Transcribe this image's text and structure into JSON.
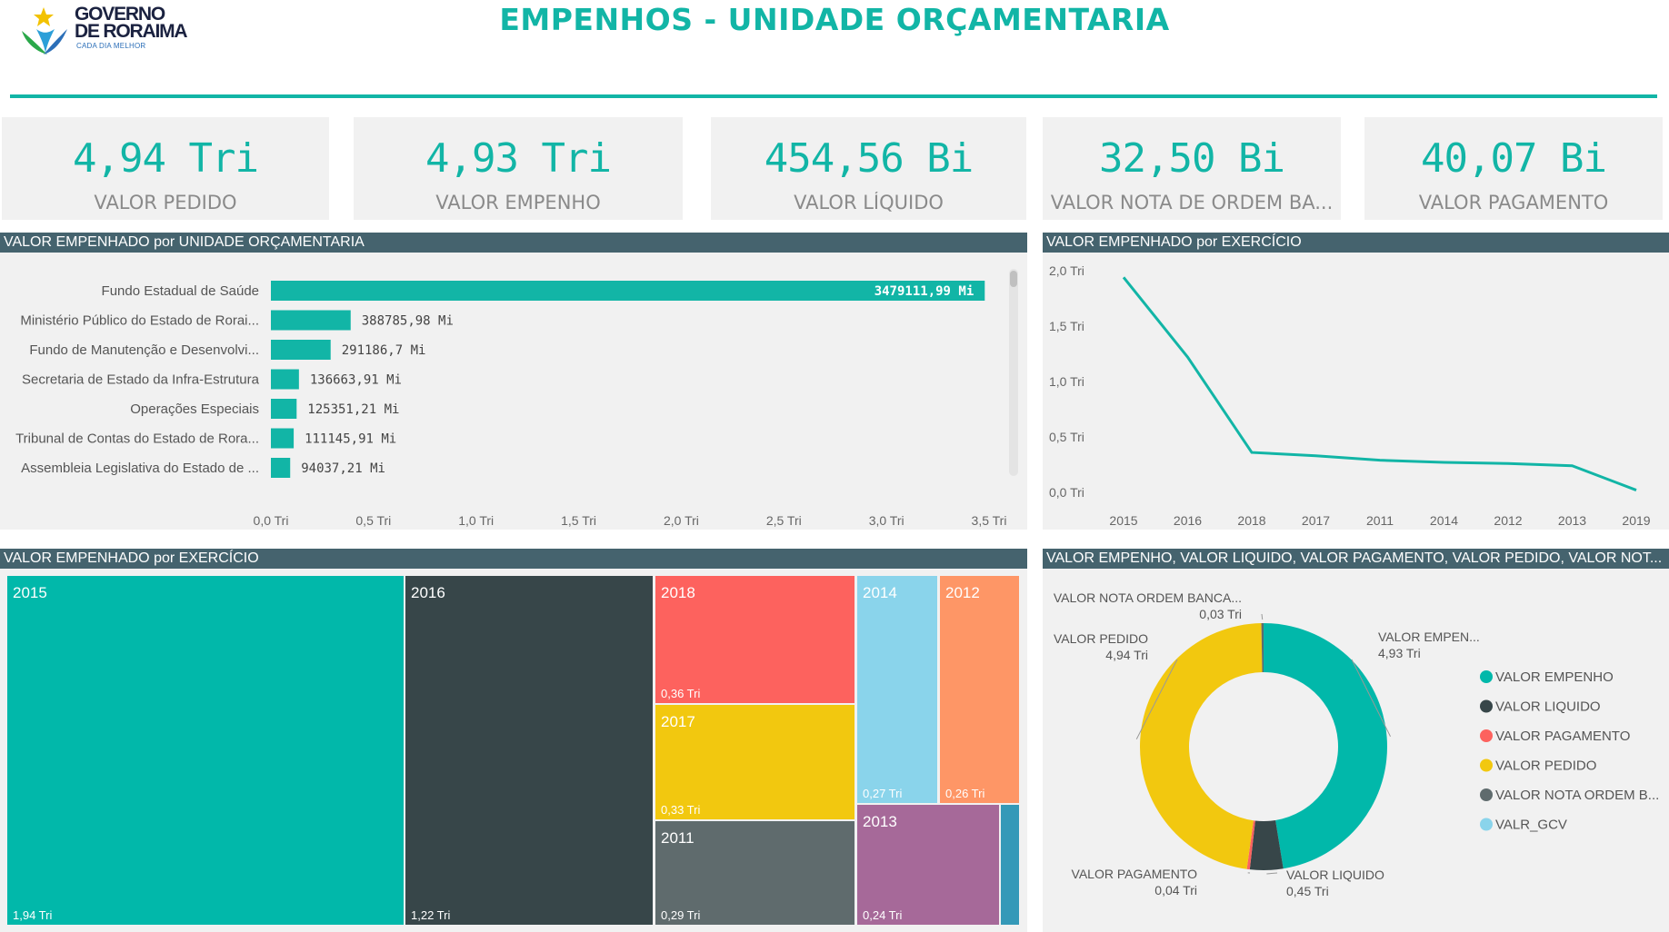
{
  "header": {
    "logo_line1": "GOVERNO",
    "logo_line2": "DE RORAIMA",
    "logo_tagline": "CADA DIA MELHOR",
    "title": "EMPENHOS - UNIDADE ORÇAMENTARIA",
    "accent": "#12b5a6"
  },
  "kpis": [
    {
      "value": "4,94 Tri",
      "label": "VALOR PEDIDO"
    },
    {
      "value": "4,93 Tri",
      "label": "VALOR EMPENHO"
    },
    {
      "value": "454,56 Bi",
      "label": "VALOR LÍQUIDO"
    },
    {
      "value": "32,50 Bi",
      "label": "VALOR NOTA DE ORDEM BA..."
    },
    {
      "value": "40,07 Bi",
      "label": "VALOR PAGAMENTO"
    }
  ],
  "panels": {
    "bar": {
      "title": "VALOR EMPENHADO por UNIDADE ORÇAMENTARIA"
    },
    "line": {
      "title": "VALOR EMPENHADO por EXERCÍCIO"
    },
    "treemap": {
      "title": "VALOR EMPENHADO por EXERCÍCIO"
    },
    "donut": {
      "title": "VALOR EMPENHO, VALOR LIQUIDO, VALOR PAGAMENTO, VALOR PEDIDO, VALOR NOT..."
    }
  },
  "chart_data": [
    {
      "type": "bar",
      "orientation": "horizontal",
      "title": "VALOR EMPENHADO por UNIDADE ORÇAMENTARIA",
      "categories": [
        "Fundo Estadual de Saúde",
        "Ministério Público do Estado de Rorai...",
        "Fundo de Manutenção e Desenvolvi...",
        "Secretaria de Estado da Infra-Estrutura",
        "Operações Especiais",
        "Tribunal de Contas do Estado de Rora...",
        "Assembleia Legislativa do Estado de ..."
      ],
      "values": [
        3.47911199,
        0.38878598,
        0.2911867,
        0.13666391,
        0.12535121,
        0.11114591,
        0.09403721
      ],
      "data_labels": [
        "3479111,99 Mi",
        "388785,98 Mi",
        "291186,7 Mi",
        "136663,91 Mi",
        "125351,21 Mi",
        "111145,91 Mi",
        "94037,21 Mi"
      ],
      "xlim": [
        0,
        3.5
      ],
      "xticks": [
        "0,0 Tri",
        "0,5 Tri",
        "1,0 Tri",
        "1,5 Tri",
        "2,0 Tri",
        "2,5 Tri",
        "3,0 Tri",
        "3,5 Tri"
      ],
      "color": "#12b5a6"
    },
    {
      "type": "line",
      "title": "VALOR EMPENHADO por EXERCÍCIO",
      "categories": [
        "2015",
        "2016",
        "2018",
        "2017",
        "2011",
        "2014",
        "2012",
        "2013",
        "2019"
      ],
      "values": [
        1.94,
        1.22,
        0.36,
        0.33,
        0.29,
        0.27,
        0.26,
        0.24,
        0.02
      ],
      "ylim": [
        0,
        2.0
      ],
      "yticks": [
        "0,0 Tri",
        "0,5 Tri",
        "1,0 Tri",
        "1,5 Tri",
        "2,0 Tri"
      ],
      "color": "#12b5a6"
    },
    {
      "type": "treemap",
      "title": "VALOR EMPENHADO por EXERCÍCIO",
      "items": [
        {
          "name": "2015",
          "value": 1.94,
          "label": "1,94 Tri",
          "color": "#01b8aa"
        },
        {
          "name": "2016",
          "value": 1.22,
          "label": "1,22 Tri",
          "color": "#374649"
        },
        {
          "name": "2018",
          "value": 0.36,
          "label": "0,36 Tri",
          "color": "#fd625e"
        },
        {
          "name": "2017",
          "value": 0.33,
          "label": "0,33 Tri",
          "color": "#f2c80f"
        },
        {
          "name": "2011",
          "value": 0.29,
          "label": "0,29 Tri",
          "color": "#5f6b6d"
        },
        {
          "name": "2014",
          "value": 0.27,
          "label": "0,27 Tri",
          "color": "#8ad4eb"
        },
        {
          "name": "2012",
          "value": 0.26,
          "label": "0,26 Tri",
          "color": "#fe9666"
        },
        {
          "name": "2013",
          "value": 0.24,
          "label": "0,24 Tri",
          "color": "#a66999"
        },
        {
          "name": "",
          "value": 0.02,
          "label": "",
          "color": "#3599b8"
        }
      ]
    },
    {
      "type": "pie",
      "donut": true,
      "title": "VALOR EMPENHO, VALOR LIQUIDO, VALOR PAGAMENTO, VALOR PEDIDO, VALOR NOT...",
      "slices": [
        {
          "name": "VALOR EMPENHO",
          "callout": "VALOR EMPEN...",
          "value": 4.93,
          "label": "4,93 Tri",
          "color": "#01b8aa"
        },
        {
          "name": "VALOR LIQUIDO",
          "callout": "VALOR LIQUIDO",
          "value": 0.45,
          "label": "0,45 Tri",
          "color": "#374649"
        },
        {
          "name": "VALOR PAGAMENTO",
          "callout": "VALOR PAGAMENTO",
          "value": 0.04,
          "label": "0,04 Tri",
          "color": "#fd625e"
        },
        {
          "name": "VALOR PEDIDO",
          "callout": "VALOR PEDIDO",
          "value": 4.94,
          "label": "4,94 Tri",
          "color": "#f2c80f"
        },
        {
          "name": "VALOR NOTA ORDEM B...",
          "callout": "VALOR NOTA ORDEM BANCA...",
          "value": 0.03,
          "label": "0,03 Tri",
          "color": "#5f6b6d"
        },
        {
          "name": "VALR_GCV",
          "callout": "",
          "value": 0.0,
          "label": "",
          "color": "#8ad4eb"
        }
      ],
      "legend": "right"
    }
  ]
}
